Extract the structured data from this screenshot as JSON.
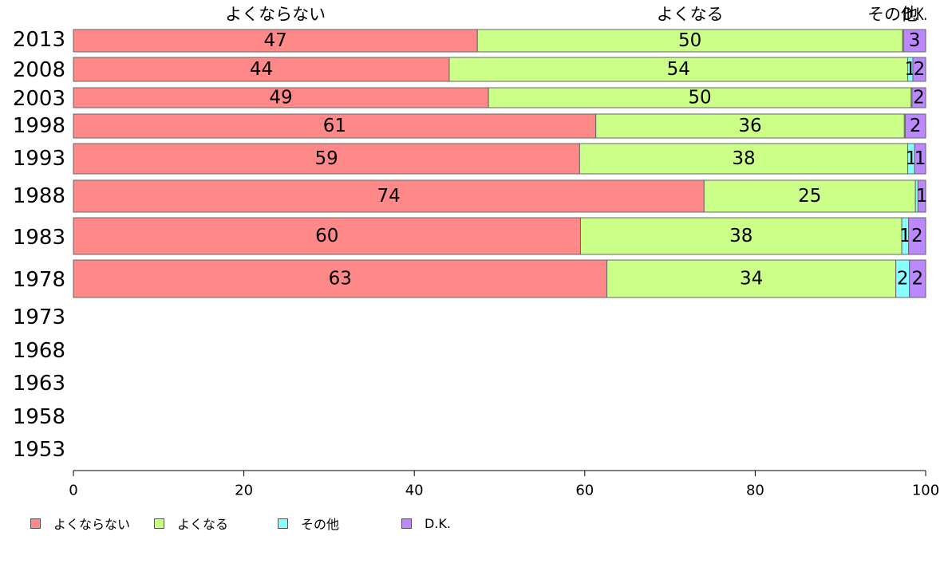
{
  "chart_data": {
    "type": "bar",
    "orientation": "horizontal",
    "stacked": true,
    "categories": [
      "2013",
      "2008",
      "2003",
      "1998",
      "1993",
      "1988",
      "1983",
      "1978",
      "1973",
      "1968",
      "1963",
      "1958",
      "1953"
    ],
    "series": [
      {
        "name": "よくならない",
        "color": "#ff8888",
        "values": [
          47.4,
          44.1,
          48.7,
          61.3,
          59.4,
          74.0,
          59.5,
          62.6,
          null,
          null,
          null,
          null,
          null
        ],
        "labels": [
          "47",
          "44",
          "49",
          "61",
          "59",
          "74",
          "60",
          "63",
          "",
          "",
          "",
          "",
          ""
        ]
      },
      {
        "name": "よくなる",
        "color": "#ccff88",
        "values": [
          49.9,
          53.8,
          49.6,
          36.2,
          38.5,
          24.8,
          37.7,
          33.9,
          null,
          null,
          null,
          null,
          null
        ],
        "labels": [
          "50",
          "54",
          "50",
          "36",
          "38",
          "25",
          "38",
          "34",
          "",
          "",
          "",
          "",
          ""
        ]
      },
      {
        "name": "その他",
        "color": "#88ffff",
        "values": [
          0.1,
          0.6,
          0.1,
          0.1,
          0.8,
          0.3,
          0.8,
          1.6,
          null,
          null,
          null,
          null,
          null
        ],
        "labels": [
          "",
          "1",
          "",
          "",
          "1",
          "",
          "1",
          "2",
          "",
          "",
          "",
          "",
          ""
        ]
      },
      {
        "name": "D.K.",
        "color": "#bb88ff",
        "values": [
          2.6,
          1.5,
          1.6,
          2.4,
          1.3,
          0.9,
          2.0,
          1.9,
          null,
          null,
          null,
          null,
          null
        ],
        "labels": [
          "3",
          "2",
          "2",
          "2",
          "1",
          "1",
          "2",
          "2",
          "",
          "",
          "",
          "",
          ""
        ]
      }
    ],
    "header_labels": [
      "よくならない",
      "よくなる",
      "その他",
      "D.K."
    ],
    "x_ticks": [
      0,
      20,
      40,
      60,
      80,
      100
    ],
    "xlim": [
      0,
      100
    ],
    "xlabel": "",
    "ylabel": "",
    "title": "",
    "grid": false,
    "legend_position": "bottom-left"
  }
}
